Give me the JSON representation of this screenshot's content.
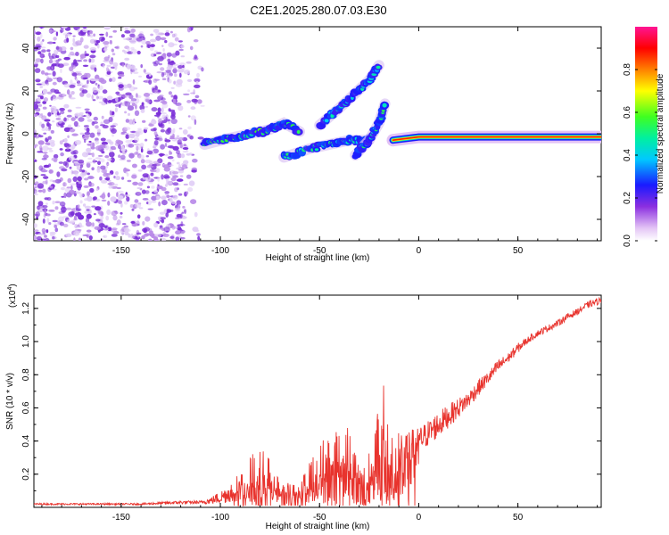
{
  "title": "C2E1.2025.280.07.03.E30",
  "colors": {
    "signal": "#e8332d",
    "noise": "#7b2fd8",
    "axis": "#000000"
  },
  "chart_data": [
    {
      "type": "heatmap",
      "id": "spectrogram",
      "xlabel": "Height of straight line (km)",
      "ylabel": "Frequency (Hz)",
      "xlim": [
        -194,
        92
      ],
      "ylim": [
        -50,
        50
      ],
      "xticks": [
        -150,
        -100,
        -50,
        0,
        50
      ],
      "yticks": [
        -40,
        -20,
        0,
        20,
        40
      ],
      "xtick_labels": [
        "-150",
        "-100",
        "-50",
        "0",
        "50"
      ],
      "ytick_labels": [
        "-40",
        "-20",
        "0",
        "20",
        "40"
      ],
      "colorbar": {
        "label": "Normalized spectral amplitude",
        "range": [
          0,
          1
        ],
        "ticks": [
          0.0,
          0.2,
          0.4,
          0.6,
          0.8
        ],
        "tick_labels": [
          "0.0",
          "0.2",
          "0.4",
          "0.6",
          "0.8"
        ],
        "colormap": "rainbow (white-purple-blue-cyan-green-yellow-red-magenta)"
      },
      "features": [
        {
          "name": "noise-field",
          "x_range": [
            -194,
            -108
          ],
          "freq_range": [
            -50,
            50
          ],
          "amplitude": 0.1
        },
        {
          "name": "main-track",
          "points": [
            [
              -108,
              -5
            ],
            [
              -95,
              -2
            ],
            [
              -85,
              0
            ],
            [
              -75,
              2
            ],
            [
              -68,
              5
            ],
            [
              -60,
              1
            ]
          ],
          "amplitude": 0.45
        },
        {
          "name": "lower-track",
          "points": [
            [
              -68,
              -11
            ],
            [
              -55,
              -7
            ],
            [
              -45,
              -5
            ],
            [
              -35,
              -3
            ],
            [
              -25,
              -3
            ]
          ],
          "amplitude": 0.4
        },
        {
          "name": "rising-track",
          "points": [
            [
              -32,
              -10
            ],
            [
              -25,
              -3
            ],
            [
              -20,
              5
            ],
            [
              -17,
              14
            ]
          ],
          "amplitude": 0.4
        },
        {
          "name": "upper-track",
          "points": [
            [
              -50,
              4
            ],
            [
              -40,
              12
            ],
            [
              -33,
              18
            ],
            [
              -25,
              25
            ],
            [
              -20,
              32
            ]
          ],
          "amplitude": 0.35
        },
        {
          "name": "steady-tone",
          "points": [
            [
              -13,
              -3
            ],
            [
              0,
              -1.5
            ],
            [
              30,
              -1.5
            ],
            [
              92,
              -1.5
            ]
          ],
          "amplitude": 0.95
        }
      ]
    },
    {
      "type": "line",
      "id": "snr",
      "xlabel": "Height of straight line (km)",
      "ylabel": "SNR (10 * v/v)",
      "y_multiplier": "(x10^4)",
      "xlim": [
        -194,
        92
      ],
      "ylim": [
        0.0,
        1.28
      ],
      "xticks": [
        -150,
        -100,
        -50,
        0,
        50
      ],
      "yticks": [
        0.2,
        0.4,
        0.6,
        0.8,
        1.0,
        1.2
      ],
      "xtick_labels": [
        "-150",
        "-100",
        "-50",
        "0",
        "50"
      ],
      "ytick_labels": [
        "0.2",
        "0.4",
        "0.6",
        "0.8",
        "1.0",
        "1.2"
      ],
      "x": [
        -194,
        -180,
        -160,
        -140,
        -120,
        -110,
        -105,
        -100,
        -95,
        -90,
        -85,
        -80,
        -75,
        -70,
        -65,
        -60,
        -55,
        -50,
        -45,
        -40,
        -35,
        -30,
        -25,
        -20,
        -17,
        -15,
        -12,
        -10,
        -5,
        0,
        5,
        10,
        15,
        20,
        25,
        30,
        35,
        40,
        45,
        50,
        55,
        60,
        65,
        70,
        75,
        80,
        85,
        92
      ],
      "values": [
        0.02,
        0.02,
        0.02,
        0.02,
        0.03,
        0.03,
        0.04,
        0.06,
        0.09,
        0.13,
        0.17,
        0.22,
        0.17,
        0.11,
        0.09,
        0.11,
        0.16,
        0.2,
        0.26,
        0.28,
        0.27,
        0.2,
        0.18,
        0.35,
        0.32,
        0.3,
        0.25,
        0.35,
        0.37,
        0.4,
        0.45,
        0.5,
        0.55,
        0.6,
        0.65,
        0.72,
        0.78,
        0.85,
        0.9,
        0.96,
        1.01,
        1.05,
        1.08,
        1.11,
        1.15,
        1.18,
        1.22,
        1.25
      ],
      "spread": [
        0.005,
        0.005,
        0.005,
        0.005,
        0.01,
        0.01,
        0.02,
        0.04,
        0.06,
        0.09,
        0.13,
        0.16,
        0.12,
        0.08,
        0.05,
        0.07,
        0.12,
        0.2,
        0.22,
        0.2,
        0.25,
        0.18,
        0.18,
        0.28,
        0.45,
        0.3,
        0.2,
        0.12,
        0.1,
        0.08,
        0.08,
        0.08,
        0.07,
        0.06,
        0.05,
        0.05,
        0.04,
        0.04,
        0.03,
        0.03,
        0.02,
        0.02,
        0.02,
        0.02,
        0.02,
        0.02,
        0.02,
        0.02
      ]
    }
  ]
}
